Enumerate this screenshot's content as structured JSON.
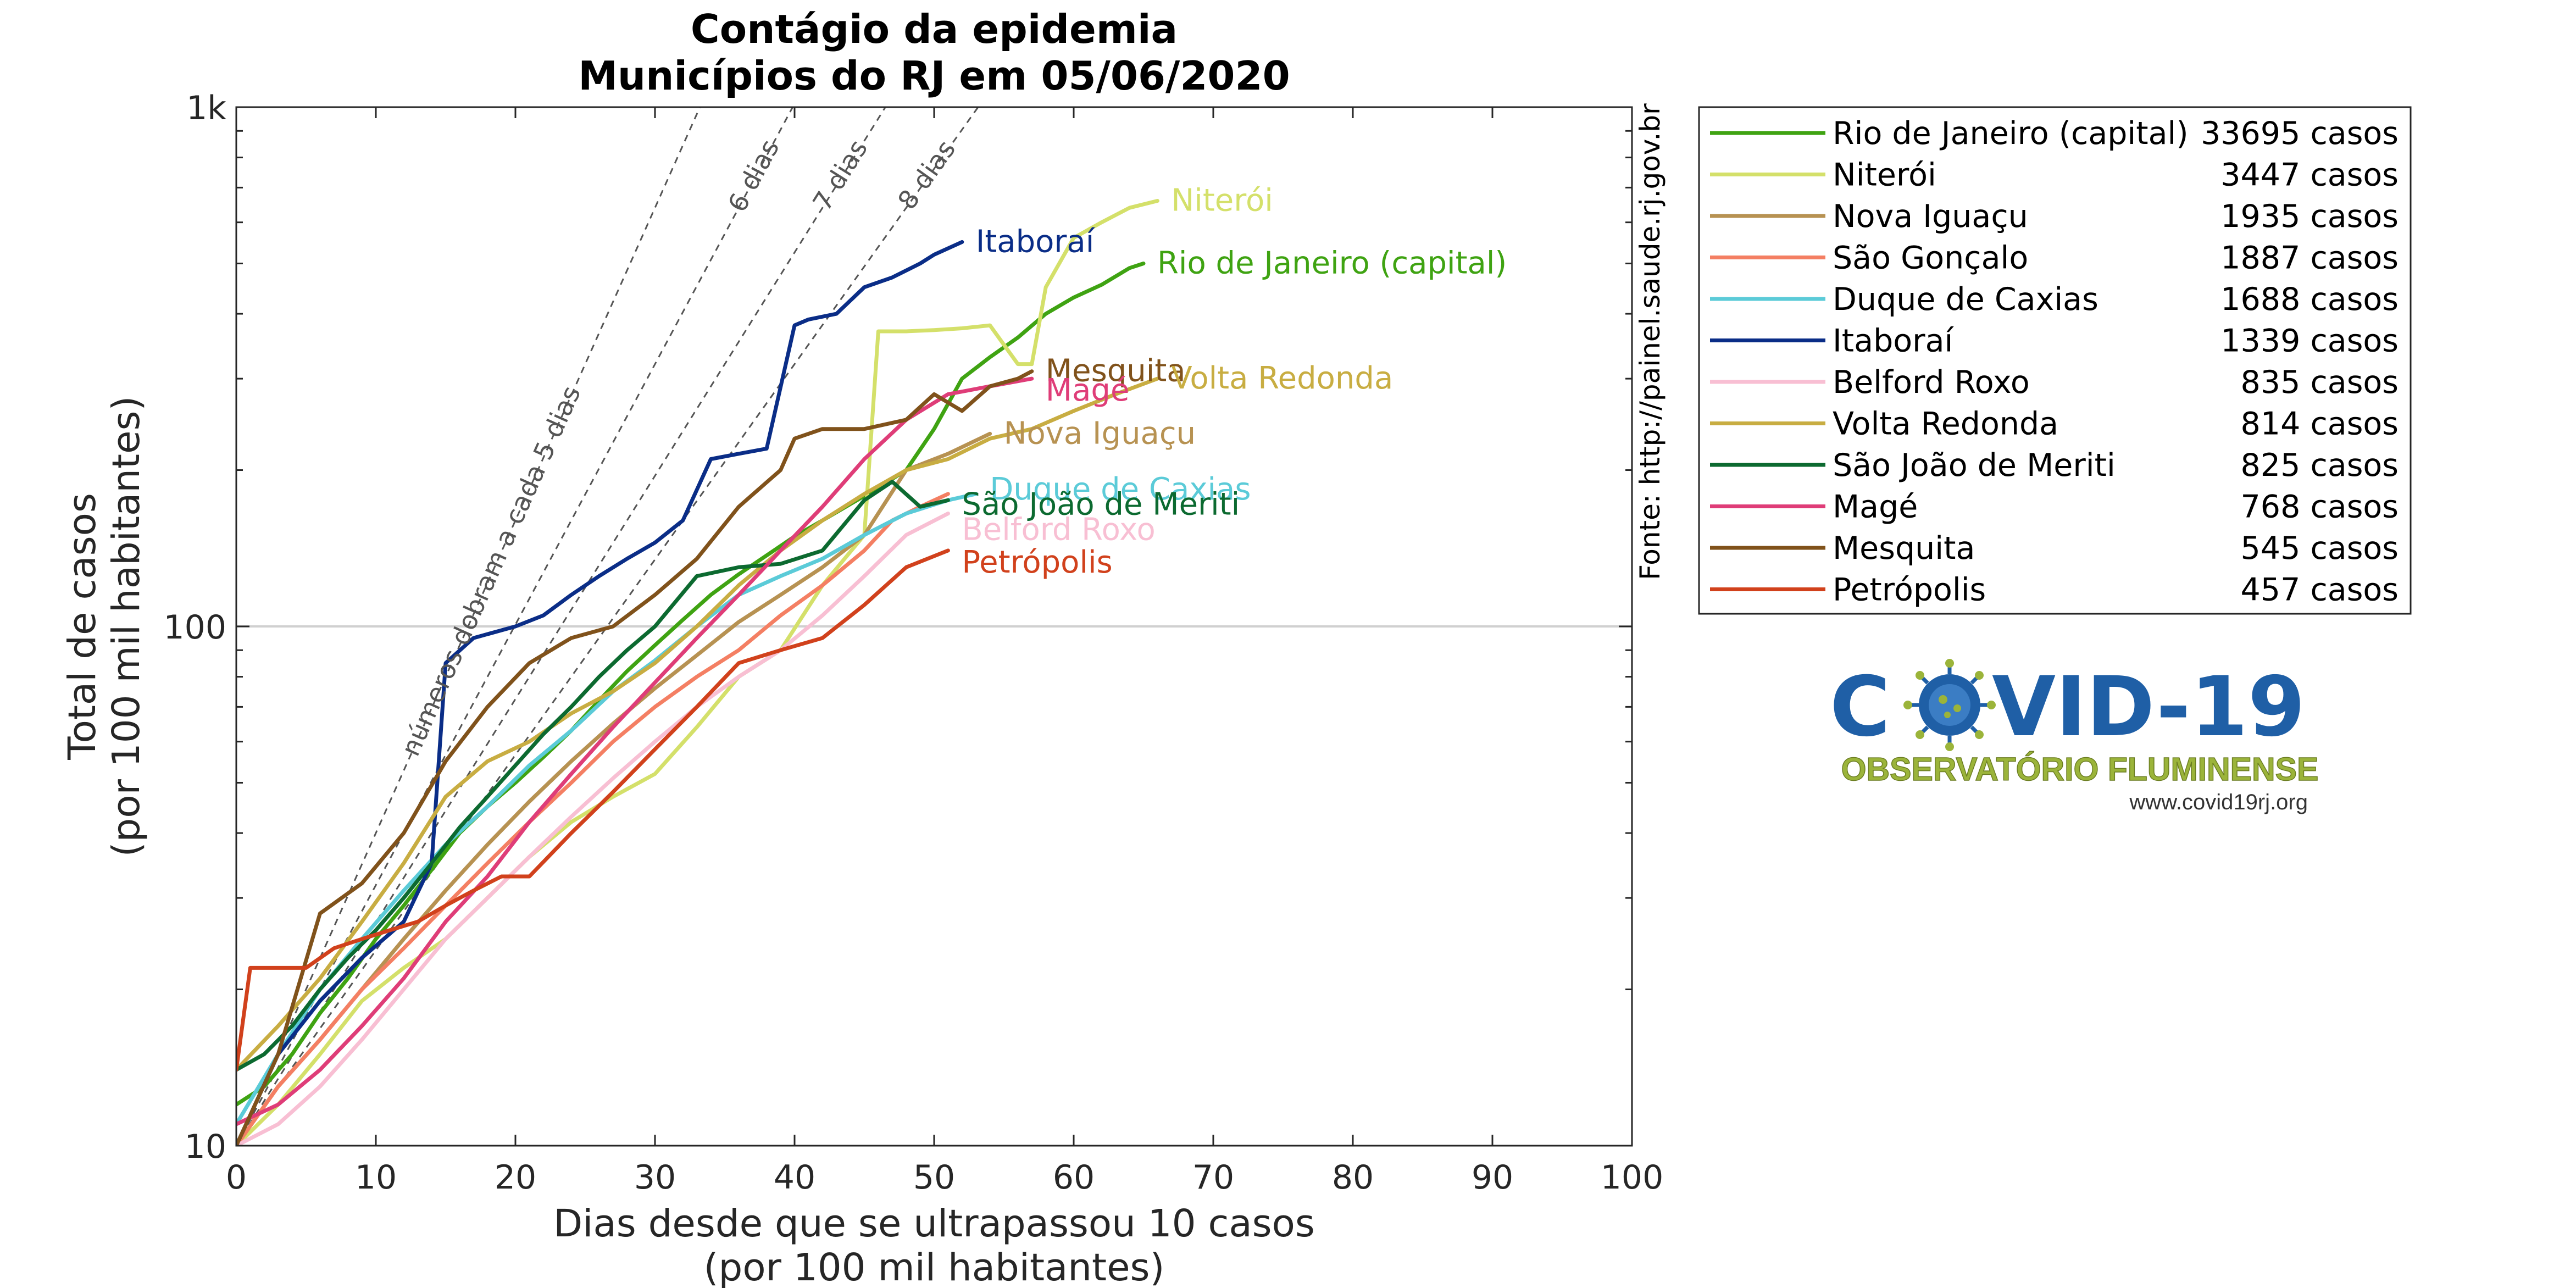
{
  "chart_data": {
    "type": "line",
    "title": "Contágio da epidemia",
    "subtitle": "Municípios do RJ em 05/06/2020",
    "xlabel": "Dias desde que se ultrapassou 10 casos",
    "xlabel_line2": "(por 100 mil habitantes)",
    "ylabel": "Total de casos",
    "ylabel_line2": "(por 100 mil habitantes)",
    "xlim": [
      0,
      100
    ],
    "ylim": [
      10,
      1000
    ],
    "yscale": "log",
    "x_ticks": [
      0,
      10,
      20,
      30,
      40,
      50,
      60,
      70,
      80,
      90,
      100
    ],
    "y_ticks": [
      {
        "value": 10,
        "label": "10"
      },
      {
        "value": 100,
        "label": "100"
      },
      {
        "value": 1000,
        "label": "1k"
      }
    ],
    "grid": "horizontal line at 100",
    "legend_position": "right, outside plot",
    "source_text": "Fonte: http://painel.saude.rj.gov.br",
    "reference_lines": [
      {
        "label": "números dobram a cada 5 dias",
        "doubling_days": 5,
        "color": "#555555"
      },
      {
        "label": "6 dias",
        "doubling_days": 6,
        "color": "#555555"
      },
      {
        "label": "7 dias",
        "doubling_days": 7,
        "color": "#555555"
      },
      {
        "label": "8 dias",
        "doubling_days": 8,
        "color": "#555555"
      }
    ],
    "series": [
      {
        "name": "Rio de Janeiro (capital)",
        "cases_label": "33695 casos",
        "color": "#3fa312",
        "x": [
          0,
          2,
          4,
          6,
          8,
          10,
          12,
          14,
          16,
          18,
          20,
          22,
          24,
          26,
          28,
          30,
          32,
          34,
          36,
          38,
          40,
          42,
          44,
          46,
          48,
          50,
          52,
          54,
          56,
          58,
          60,
          62,
          64,
          65
        ],
        "y": [
          12,
          13,
          15,
          18,
          21,
          25,
          29,
          34,
          40,
          45,
          50,
          56,
          63,
          72,
          82,
          92,
          103,
          115,
          126,
          137,
          149,
          160,
          172,
          185,
          200,
          240,
          300,
          330,
          360,
          400,
          430,
          455,
          490,
          500
        ]
      },
      {
        "name": "Niterói",
        "cases_label": "3447 casos",
        "color": "#d4e06a",
        "x": [
          0,
          3,
          6,
          9,
          12,
          15,
          18,
          21,
          24,
          27,
          30,
          33,
          36,
          39,
          42,
          45,
          46,
          48,
          50,
          52,
          54,
          56,
          57,
          58,
          60,
          62,
          64,
          66
        ],
        "y": [
          10,
          12,
          15,
          19,
          22,
          25,
          30,
          36,
          42,
          47,
          52,
          64,
          80,
          90,
          120,
          150,
          370,
          370,
          372,
          375,
          380,
          320,
          320,
          450,
          560,
          600,
          640,
          660
        ]
      },
      {
        "name": "Nova Iguaçu",
        "cases_label": "1935 casos",
        "color": "#b79252",
        "x": [
          0,
          3,
          6,
          9,
          12,
          15,
          18,
          21,
          24,
          27,
          30,
          33,
          36,
          39,
          42,
          45,
          48,
          51,
          54
        ],
        "y": [
          10,
          13,
          16,
          20,
          25,
          31,
          38,
          46,
          55,
          65,
          76,
          88,
          102,
          115,
          130,
          150,
          200,
          215,
          235
        ]
      },
      {
        "name": "São Gonçalo",
        "cases_label": "1887 casos",
        "color": "#f47f63",
        "x": [
          0,
          3,
          6,
          9,
          12,
          15,
          18,
          21,
          24,
          27,
          30,
          33,
          36,
          39,
          42,
          45,
          47,
          49,
          51
        ],
        "y": [
          10,
          13,
          16,
          20,
          24,
          29,
          35,
          42,
          50,
          60,
          70,
          80,
          90,
          105,
          120,
          140,
          160,
          170,
          180
        ]
      },
      {
        "name": "Duque de Caxias",
        "cases_label": "1688 casos",
        "color": "#5bcbd8",
        "x": [
          0,
          3,
          6,
          9,
          12,
          15,
          18,
          21,
          24,
          27,
          30,
          33,
          36,
          39,
          42,
          45,
          48,
          51,
          53
        ],
        "y": [
          11,
          15,
          20,
          25,
          31,
          38,
          45,
          54,
          63,
          75,
          86,
          100,
          115,
          125,
          135,
          150,
          165,
          175,
          180
        ]
      },
      {
        "name": "Itaboraí",
        "cases_label": "1339 casos",
        "color": "#0a2d87",
        "x": [
          0,
          3,
          6,
          9,
          12,
          14,
          15,
          17,
          20,
          22,
          24,
          26,
          28,
          30,
          32,
          34,
          36,
          38,
          40,
          41,
          43,
          45,
          47,
          49,
          50,
          52
        ],
        "y": [
          10,
          15,
          19,
          23,
          27,
          35,
          85,
          95,
          100,
          105,
          115,
          125,
          135,
          145,
          160,
          210,
          215,
          220,
          380,
          390,
          400,
          450,
          470,
          500,
          520,
          550
        ]
      },
      {
        "name": "Belford Roxo",
        "cases_label": "835 casos",
        "color": "#f8bfd3",
        "x": [
          0,
          3,
          6,
          9,
          12,
          15,
          18,
          21,
          24,
          27,
          30,
          33,
          36,
          39,
          42,
          45,
          48,
          51
        ],
        "y": [
          10,
          11,
          13,
          16,
          20,
          25,
          30,
          36,
          43,
          51,
          60,
          70,
          80,
          90,
          105,
          125,
          150,
          165
        ]
      },
      {
        "name": "Volta Redonda",
        "cases_label": "814 casos",
        "color": "#c8ad42",
        "x": [
          0,
          3,
          6,
          9,
          12,
          15,
          18,
          21,
          24,
          27,
          30,
          33,
          36,
          39,
          42,
          45,
          48,
          51,
          54,
          57,
          60,
          63,
          66
        ],
        "y": [
          14,
          17,
          21,
          27,
          35,
          47,
          55,
          60,
          68,
          75,
          85,
          100,
          120,
          140,
          160,
          180,
          200,
          210,
          230,
          240,
          260,
          280,
          300
        ]
      },
      {
        "name": "São João de Meriti",
        "cases_label": "825 casos",
        "color": "#0c6a30",
        "x": [
          0,
          2,
          4,
          6,
          8,
          10,
          12,
          14,
          16,
          18,
          20,
          22,
          24,
          26,
          28,
          30,
          33,
          36,
          39,
          42,
          45,
          47,
          49,
          51
        ],
        "y": [
          14,
          15,
          17,
          20,
          23,
          26,
          30,
          35,
          41,
          47,
          54,
          62,
          70,
          80,
          90,
          100,
          125,
          130,
          132,
          140,
          175,
          190,
          170,
          175
        ]
      },
      {
        "name": "Magé",
        "cases_label": "768 casos",
        "color": "#df3d78",
        "x": [
          0,
          3,
          6,
          9,
          12,
          15,
          18,
          21,
          24,
          27,
          30,
          33,
          36,
          39,
          42,
          45,
          48,
          51,
          54,
          57
        ],
        "y": [
          11,
          12,
          14,
          17,
          21,
          27,
          33,
          42,
          52,
          64,
          78,
          95,
          115,
          140,
          170,
          210,
          250,
          280,
          290,
          300
        ]
      },
      {
        "name": "Mesquita",
        "cases_label": "545 casos",
        "color": "#80521b",
        "x": [
          0,
          3,
          6,
          9,
          12,
          15,
          18,
          21,
          24,
          27,
          30,
          33,
          36,
          39,
          40,
          42,
          45,
          48,
          50,
          52,
          54,
          56,
          57
        ],
        "y": [
          10,
          15,
          28,
          32,
          40,
          55,
          70,
          85,
          95,
          100,
          115,
          135,
          170,
          200,
          230,
          240,
          240,
          250,
          280,
          260,
          290,
          300,
          310
        ]
      },
      {
        "name": "Petrópolis",
        "cases_label": "457 casos",
        "color": "#d1411c",
        "x": [
          0,
          1,
          3,
          5,
          7,
          9,
          11,
          13,
          15,
          17,
          19,
          21,
          24,
          27,
          30,
          33,
          36,
          39,
          42,
          45,
          48,
          51
        ],
        "y": [
          14,
          22,
          22,
          22,
          24,
          25,
          26,
          27,
          29,
          31,
          33,
          33,
          40,
          48,
          58,
          70,
          85,
          90,
          95,
          110,
          130,
          140
        ]
      }
    ],
    "end_labels": [
      {
        "text": "Niterói",
        "series": "Niterói"
      },
      {
        "text": "Itaboraí",
        "series": "Itaboraí"
      },
      {
        "text": "Rio de Janeiro (capital)",
        "series": "Rio de Janeiro (capital)"
      },
      {
        "text": "Mesquita",
        "series": "Mesquita"
      },
      {
        "text": "Volta Redonda",
        "series": "Volta Redonda"
      },
      {
        "text": "Magé",
        "series": "Magé"
      },
      {
        "text": "Nova Iguaçu",
        "series": "Nova Iguaçu"
      },
      {
        "text": "Duque de Caxias",
        "series": "Duque de Caxias"
      },
      {
        "text": "São João de Meriti",
        "series": "São João de Meriti"
      },
      {
        "text": "Belford Roxo",
        "series": "Belford Roxo"
      },
      {
        "text": "Petrópolis",
        "series": "Petrópolis"
      }
    ]
  },
  "logo": {
    "title_left": "C",
    "title_right": "VID-19",
    "subtitle": "OBSERVATÓRIO FLUMINENSE",
    "url": "www.covid19rj.org",
    "color_primary": "#1f5fa6",
    "color_secondary": "#9bb43a",
    "icon": "virus-icon"
  }
}
